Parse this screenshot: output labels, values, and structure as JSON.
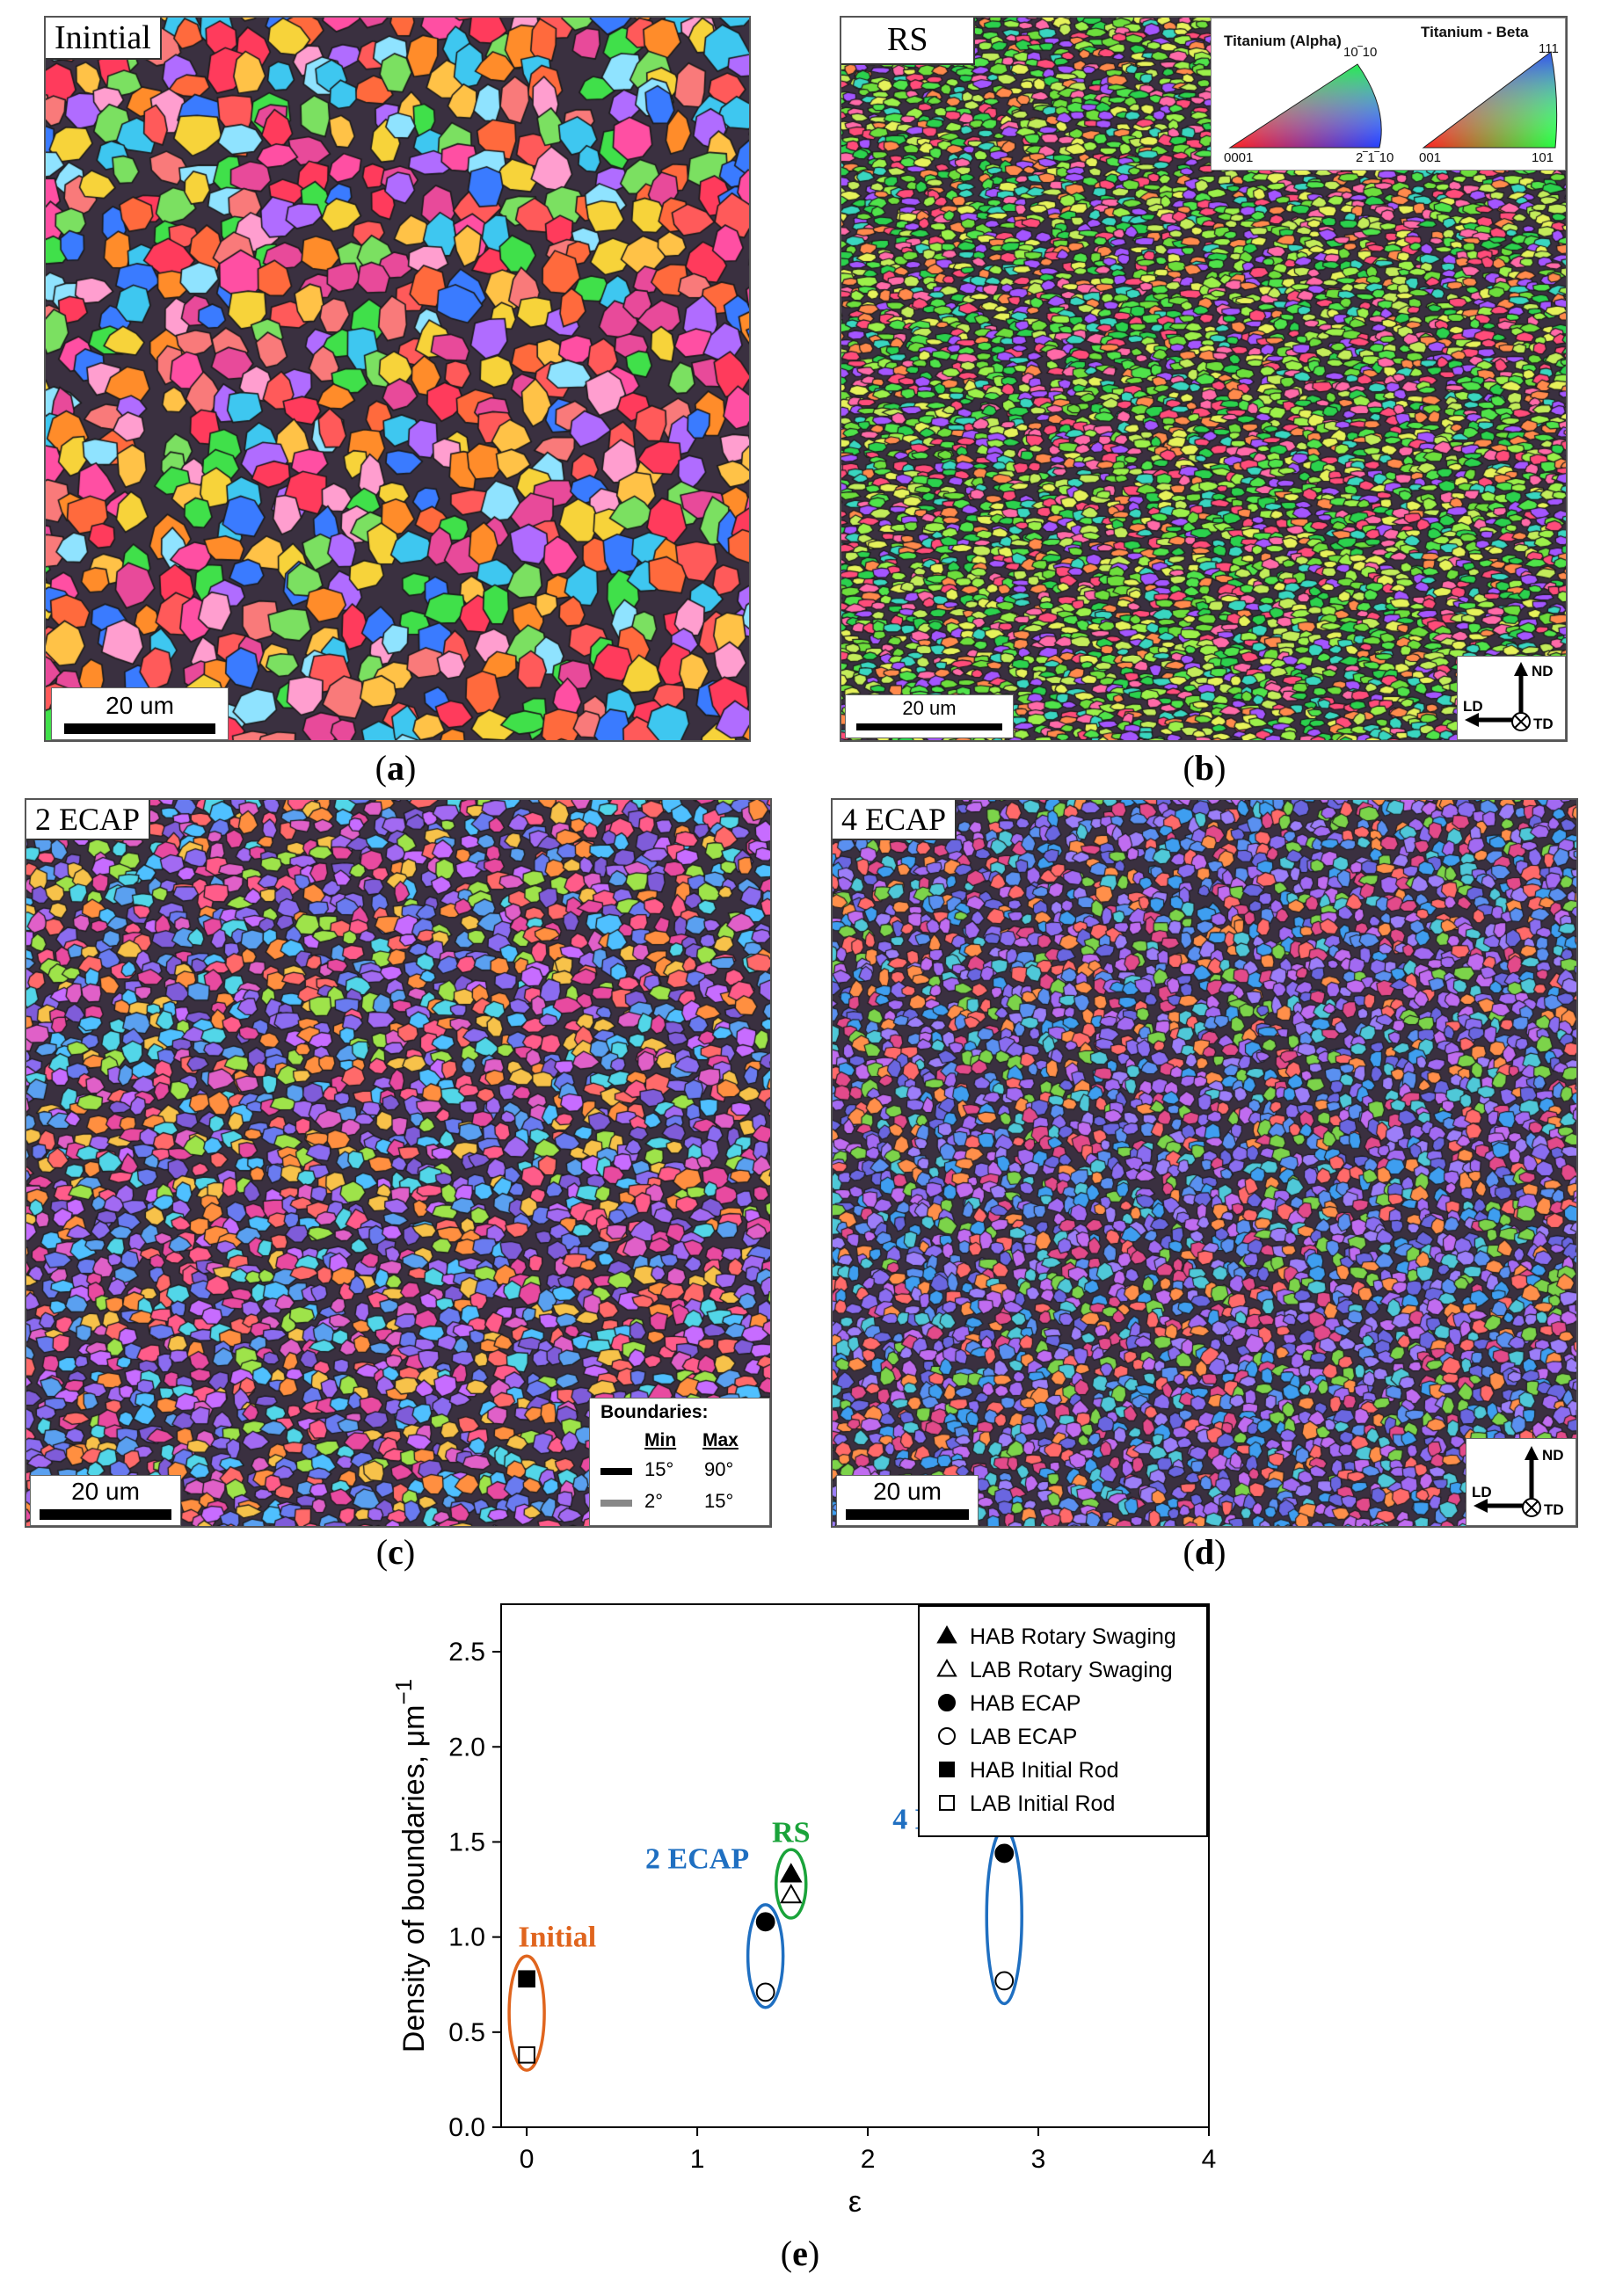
{
  "panels": [
    {
      "id": "a",
      "label": "Inintial",
      "caption_letter": "a",
      "scale": "20 um"
    },
    {
      "id": "b",
      "label": "RS",
      "caption_letter": "b",
      "scale": "20 um"
    },
    {
      "id": "c",
      "label": "2 ECAP",
      "caption_letter": "c",
      "scale": "20 um"
    },
    {
      "id": "d",
      "label": "4 ECAP",
      "caption_letter": "d",
      "scale": "20 um"
    }
  ],
  "ipf_legend": {
    "alpha_title": "Titanium (Alpha)",
    "beta_title": "Titanium - Beta",
    "alpha_top": "10‾10",
    "alpha_left": "0001",
    "alpha_right": "2‾1‾10",
    "beta_top": "111",
    "beta_left": "001",
    "beta_right": "101"
  },
  "axes_legend": {
    "nd": "ND",
    "ld": "LD",
    "td": "TD"
  },
  "boundaries_legend": {
    "title": "Boundaries:",
    "min_header": "Min",
    "max_header": "Max",
    "rows": [
      {
        "min": "15°",
        "max": "90°",
        "color": "#000000"
      },
      {
        "min": "2°",
        "max": "15°",
        "color": "#888888"
      }
    ]
  },
  "chart_caption_letter": "e",
  "chart_data": {
    "type": "scatter",
    "xlabel": "ε",
    "ylabel": "Density of boundaries, μm",
    "ylabel_superscript": "−1",
    "xlim": [
      -0.15,
      4
    ],
    "ylim": [
      0,
      2.75
    ],
    "xticks": [
      0,
      1,
      2,
      3,
      4
    ],
    "yticks": [
      0.0,
      0.5,
      1.0,
      1.5,
      2.0,
      2.5
    ],
    "ytick_labels": [
      "0.0",
      "0.5",
      "1.0",
      "1.5",
      "2.0",
      "2.5"
    ],
    "legend_position": "top-right",
    "series": [
      {
        "name": "HAB Rotary Swaging",
        "marker": "triangle-filled",
        "points": [
          {
            "x": 1.55,
            "y": 1.33
          }
        ]
      },
      {
        "name": "LAB Rotary Swaging",
        "marker": "triangle-open",
        "points": [
          {
            "x": 1.55,
            "y": 1.22
          }
        ]
      },
      {
        "name": "HAB ECAP",
        "marker": "circle-filled",
        "points": [
          {
            "x": 1.4,
            "y": 1.08
          },
          {
            "x": 2.8,
            "y": 1.44
          }
        ]
      },
      {
        "name": "LAB ECAP",
        "marker": "circle-open",
        "points": [
          {
            "x": 1.4,
            "y": 0.71
          },
          {
            "x": 2.8,
            "y": 0.77
          }
        ]
      },
      {
        "name": "HAB Initial Rod",
        "marker": "square-filled",
        "points": [
          {
            "x": 0.0,
            "y": 0.78
          }
        ]
      },
      {
        "name": "LAB Initial Rod",
        "marker": "square-open",
        "points": [
          {
            "x": 0.0,
            "y": 0.38
          }
        ]
      }
    ],
    "annotations": [
      {
        "text": "Initial",
        "color": "#e0651e",
        "x": 0.0,
        "y0": 0.3,
        "y1": 0.9
      },
      {
        "text": "2 ECAP",
        "color": "#1f6fc1",
        "x": 1.4,
        "y0": 0.63,
        "y1": 1.17
      },
      {
        "text": "RS",
        "color": "#1aa33a",
        "x": 1.55,
        "y0": 1.1,
        "y1": 1.46
      },
      {
        "text": "4 ECAP",
        "color": "#1f6fc1",
        "x": 2.8,
        "y0": 0.65,
        "y1": 1.57
      }
    ]
  }
}
